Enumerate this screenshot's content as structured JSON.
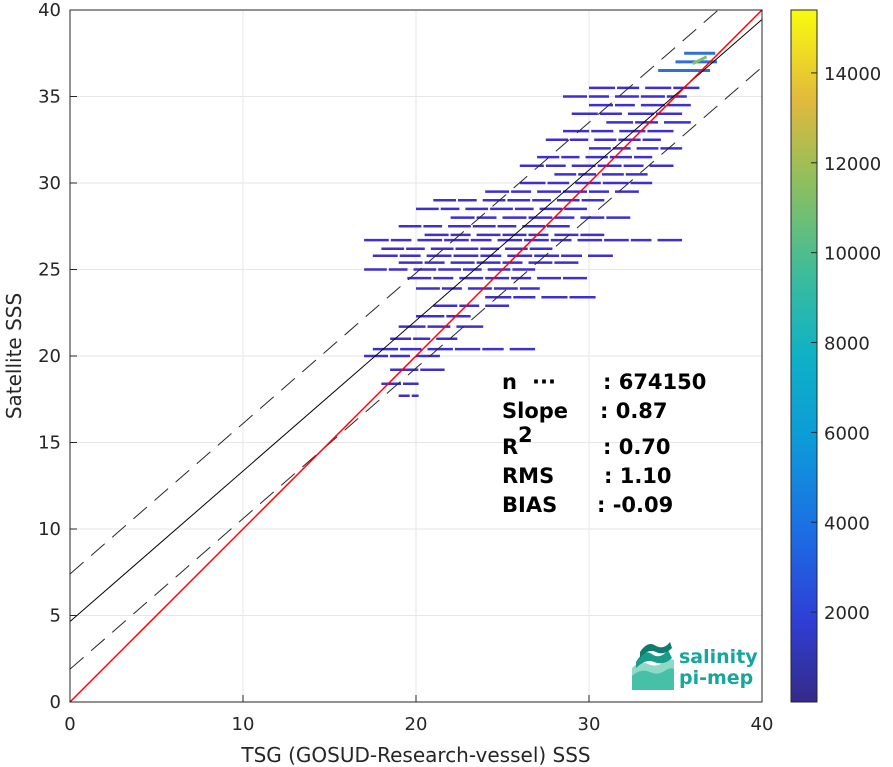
{
  "chart_data": {
    "type": "scatter",
    "xlabel": "TSG (GOSUD-Research-vessel) SSS",
    "ylabel": "Satellite SSS",
    "xlim": [
      0,
      40
    ],
    "ylim": [
      0,
      40
    ],
    "x_ticks": [
      "0",
      "10",
      "20",
      "30",
      "40"
    ],
    "y_ticks": [
      "0",
      "5",
      "10",
      "15",
      "20",
      "25",
      "30",
      "35",
      "40"
    ],
    "grid": true,
    "colorbar": {
      "range": [
        0,
        15400
      ],
      "ticks": [
        "2000",
        "4000",
        "6000",
        "8000",
        "10000",
        "12000",
        "14000"
      ],
      "colormap": "parula"
    },
    "one_to_one_line": {
      "slope": 1,
      "intercept": 0,
      "color": "#ff0000"
    },
    "regression_line": {
      "slope": 0.87,
      "intercept": 4.65,
      "color": "#000000"
    },
    "envelope_lines": [
      {
        "slope": 0.87,
        "intercept": 7.4,
        "style": "dashed"
      },
      {
        "slope": 0.87,
        "intercept": 1.9,
        "style": "dashed"
      }
    ],
    "density_segments": [
      {
        "x0": 30.0,
        "x1": 36.5,
        "y": 35.5
      },
      {
        "x0": 28.5,
        "x1": 36.0,
        "y": 35.0
      },
      {
        "x0": 30.0,
        "x1": 36.0,
        "y": 34.5
      },
      {
        "x0": 29.0,
        "x1": 35.5,
        "y": 34.0
      },
      {
        "x0": 31.0,
        "x1": 36.0,
        "y": 33.5
      },
      {
        "x0": 28.5,
        "x1": 35.0,
        "y": 33.0
      },
      {
        "x0": 27.5,
        "x1": 34.5,
        "y": 32.5
      },
      {
        "x0": 30.0,
        "x1": 35.5,
        "y": 32.0
      },
      {
        "x0": 27.0,
        "x1": 34.0,
        "y": 31.5
      },
      {
        "x0": 26.0,
        "x1": 35.0,
        "y": 31.0
      },
      {
        "x0": 28.0,
        "x1": 33.5,
        "y": 30.5
      },
      {
        "x0": 26.0,
        "x1": 34.0,
        "y": 30.0
      },
      {
        "x0": 24.0,
        "x1": 33.0,
        "y": 29.5
      },
      {
        "x0": 21.0,
        "x1": 31.0,
        "y": 29.0
      },
      {
        "x0": 20.0,
        "x1": 30.0,
        "y": 28.5
      },
      {
        "x0": 22.0,
        "x1": 32.5,
        "y": 28.0
      },
      {
        "x0": 19.0,
        "x1": 29.0,
        "y": 27.5
      },
      {
        "x0": 20.5,
        "x1": 31.0,
        "y": 27.0
      },
      {
        "x0": 17.0,
        "x1": 35.5,
        "y": 26.7
      },
      {
        "x0": 18.0,
        "x1": 28.0,
        "y": 26.2
      },
      {
        "x0": 17.5,
        "x1": 31.5,
        "y": 25.8
      },
      {
        "x0": 19.0,
        "x1": 29.5,
        "y": 25.4
      },
      {
        "x0": 17.0,
        "x1": 27.0,
        "y": 25.0
      },
      {
        "x0": 19.5,
        "x1": 30.0,
        "y": 24.5
      },
      {
        "x0": 20.0,
        "x1": 27.5,
        "y": 23.9
      },
      {
        "x0": 24.0,
        "x1": 30.5,
        "y": 23.4
      },
      {
        "x0": 21.0,
        "x1": 25.5,
        "y": 22.9
      },
      {
        "x0": 20.0,
        "x1": 23.5,
        "y": 22.3
      },
      {
        "x0": 19.0,
        "x1": 24.0,
        "y": 21.7
      },
      {
        "x0": 18.5,
        "x1": 22.5,
        "y": 21.0
      },
      {
        "x0": 17.5,
        "x1": 27.0,
        "y": 20.4
      },
      {
        "x0": 17.0,
        "x1": 21.5,
        "y": 20.0
      },
      {
        "x0": 18.5,
        "x1": 22.0,
        "y": 19.2
      },
      {
        "x0": 18.0,
        "x1": 20.5,
        "y": 18.4
      },
      {
        "x0": 19.0,
        "x1": 20.5,
        "y": 17.7
      }
    ],
    "hot_segments": [
      {
        "x0": 34.0,
        "x1": 37.0,
        "y": 36.5
      },
      {
        "x0": 35.0,
        "x1": 37.4,
        "y": 37.0
      },
      {
        "x0": 35.5,
        "x1": 37.3,
        "y": 37.5
      }
    ],
    "stats": {
      "labels": [
        "n",
        "Slope",
        "R",
        "RMS",
        "BIAS"
      ],
      "r_superscript": "2",
      "values": [
        ": 674150",
        ": 0.87",
        ": 0.70",
        ": 1.10",
        ": -0.09"
      ]
    }
  },
  "logo": {
    "line1": "salinity",
    "line2": "pi-mep"
  }
}
